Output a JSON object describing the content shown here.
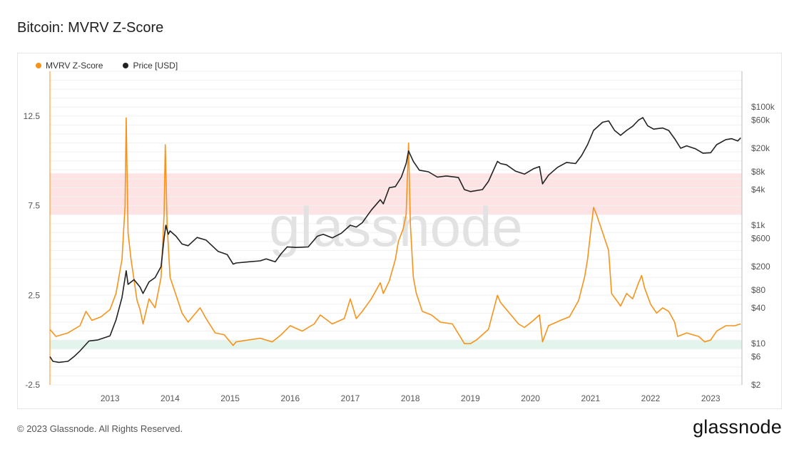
{
  "title": "Bitcoin: MVRV Z-Score",
  "legend": [
    {
      "label": "MVRV Z-Score",
      "color": "#f7931a"
    },
    {
      "label": "Price [USD]",
      "color": "#222222"
    }
  ],
  "watermark": "glassnode",
  "footer": {
    "copyright": "© 2023 Glassnode. All Rights Reserved.",
    "logo_text": "glassnode"
  },
  "chart_data": {
    "type": "line",
    "x_ticks": [
      "2013",
      "2014",
      "2015",
      "2016",
      "2017",
      "2018",
      "2019",
      "2020",
      "2021",
      "2022",
      "2023"
    ],
    "x_range": [
      2012.0,
      2023.52
    ],
    "y_left": {
      "range": [
        -2.5,
        15
      ],
      "ticks": [
        "12.5",
        "7.5",
        "2.5",
        "-2.5"
      ],
      "tick_values": [
        12.5,
        7.5,
        2.5,
        -2.5
      ]
    },
    "y_right": {
      "scale": "log",
      "range": [
        2,
        400000
      ],
      "ticks": [
        "$100k",
        "$60k",
        "$20k",
        "$8k",
        "$4k",
        "$1k",
        "$600",
        "$200",
        "$80",
        "$40",
        "$10",
        "$6",
        "$2"
      ],
      "tick_values": [
        100000,
        60000,
        20000,
        8000,
        4000,
        1000,
        600,
        200,
        80,
        40,
        10,
        6,
        2
      ]
    },
    "bands": [
      {
        "name": "overvalued",
        "y_from": 7.0,
        "y_to": 9.3,
        "color": "#fde3e3"
      },
      {
        "name": "undervalued",
        "y_from": -0.5,
        "y_to": 0.0,
        "color": "#e3f4ec"
      }
    ],
    "series": [
      {
        "name": "MVRV Z-Score",
        "axis": "left",
        "color": "#f7931a",
        "points": [
          [
            2012.0,
            0.6
          ],
          [
            2012.1,
            0.2
          ],
          [
            2012.3,
            0.4
          ],
          [
            2012.5,
            0.8
          ],
          [
            2012.6,
            1.6
          ],
          [
            2012.7,
            1.1
          ],
          [
            2012.85,
            1.3
          ],
          [
            2013.0,
            1.7
          ],
          [
            2013.1,
            2.6
          ],
          [
            2013.2,
            4.5
          ],
          [
            2013.25,
            7.5
          ],
          [
            2013.27,
            12.4
          ],
          [
            2013.3,
            6.0
          ],
          [
            2013.35,
            4.5
          ],
          [
            2013.45,
            2.2
          ],
          [
            2013.5,
            1.7
          ],
          [
            2013.55,
            0.9
          ],
          [
            2013.65,
            2.3
          ],
          [
            2013.75,
            1.8
          ],
          [
            2013.85,
            3.5
          ],
          [
            2013.9,
            7.0
          ],
          [
            2013.92,
            10.9
          ],
          [
            2013.95,
            6.5
          ],
          [
            2014.0,
            3.5
          ],
          [
            2014.1,
            2.5
          ],
          [
            2014.2,
            1.5
          ],
          [
            2014.3,
            1.0
          ],
          [
            2014.4,
            1.4
          ],
          [
            2014.5,
            1.8
          ],
          [
            2014.6,
            1.2
          ],
          [
            2014.75,
            0.4
          ],
          [
            2014.9,
            0.3
          ],
          [
            2015.05,
            -0.3
          ],
          [
            2015.1,
            -0.1
          ],
          [
            2015.3,
            0.0
          ],
          [
            2015.5,
            0.1
          ],
          [
            2015.7,
            -0.1
          ],
          [
            2015.85,
            0.3
          ],
          [
            2016.0,
            0.8
          ],
          [
            2016.2,
            0.5
          ],
          [
            2016.4,
            0.9
          ],
          [
            2016.5,
            1.4
          ],
          [
            2016.7,
            0.9
          ],
          [
            2016.9,
            1.2
          ],
          [
            2017.0,
            2.3
          ],
          [
            2017.1,
            1.2
          ],
          [
            2017.2,
            1.6
          ],
          [
            2017.35,
            2.3
          ],
          [
            2017.5,
            3.2
          ],
          [
            2017.55,
            2.6
          ],
          [
            2017.65,
            3.3
          ],
          [
            2017.75,
            4.5
          ],
          [
            2017.8,
            5.5
          ],
          [
            2017.88,
            6.2
          ],
          [
            2017.93,
            7.0
          ],
          [
            2017.97,
            11.0
          ],
          [
            2018.0,
            6.5
          ],
          [
            2018.05,
            3.5
          ],
          [
            2018.1,
            2.6
          ],
          [
            2018.2,
            1.6
          ],
          [
            2018.35,
            1.4
          ],
          [
            2018.5,
            1.0
          ],
          [
            2018.7,
            0.9
          ],
          [
            2018.9,
            -0.2
          ],
          [
            2019.0,
            -0.2
          ],
          [
            2019.1,
            0.0
          ],
          [
            2019.3,
            0.6
          ],
          [
            2019.45,
            2.5
          ],
          [
            2019.5,
            2.1
          ],
          [
            2019.6,
            1.7
          ],
          [
            2019.8,
            0.9
          ],
          [
            2019.9,
            0.7
          ],
          [
            2020.05,
            1.1
          ],
          [
            2020.15,
            1.4
          ],
          [
            2020.2,
            -0.1
          ],
          [
            2020.3,
            0.8
          ],
          [
            2020.5,
            1.1
          ],
          [
            2020.65,
            1.3
          ],
          [
            2020.8,
            2.2
          ],
          [
            2020.9,
            3.5
          ],
          [
            2020.95,
            4.5
          ],
          [
            2021.0,
            6.0
          ],
          [
            2021.05,
            7.4
          ],
          [
            2021.1,
            7.0
          ],
          [
            2021.2,
            6.0
          ],
          [
            2021.3,
            5.0
          ],
          [
            2021.35,
            2.6
          ],
          [
            2021.5,
            1.9
          ],
          [
            2021.6,
            2.6
          ],
          [
            2021.7,
            2.3
          ],
          [
            2021.8,
            3.2
          ],
          [
            2021.85,
            3.6
          ],
          [
            2021.9,
            2.9
          ],
          [
            2022.0,
            2.0
          ],
          [
            2022.1,
            1.5
          ],
          [
            2022.2,
            1.8
          ],
          [
            2022.3,
            1.6
          ],
          [
            2022.4,
            1.0
          ],
          [
            2022.45,
            0.2
          ],
          [
            2022.6,
            0.4
          ],
          [
            2022.8,
            0.2
          ],
          [
            2022.9,
            -0.1
          ],
          [
            2023.0,
            0.0
          ],
          [
            2023.1,
            0.5
          ],
          [
            2023.25,
            0.8
          ],
          [
            2023.4,
            0.8
          ],
          [
            2023.5,
            0.9
          ]
        ]
      },
      {
        "name": "Price [USD]",
        "axis": "right",
        "color": "#222222",
        "points": [
          [
            2012.0,
            6
          ],
          [
            2012.05,
            5
          ],
          [
            2012.15,
            4.8
          ],
          [
            2012.3,
            5
          ],
          [
            2012.4,
            6
          ],
          [
            2012.5,
            7.5
          ],
          [
            2012.65,
            11
          ],
          [
            2012.8,
            11.5
          ],
          [
            2013.0,
            13.5
          ],
          [
            2013.1,
            25
          ],
          [
            2013.2,
            60
          ],
          [
            2013.27,
            170
          ],
          [
            2013.3,
            100
          ],
          [
            2013.4,
            120
          ],
          [
            2013.5,
            90
          ],
          [
            2013.55,
            70
          ],
          [
            2013.65,
            110
          ],
          [
            2013.75,
            130
          ],
          [
            2013.85,
            200
          ],
          [
            2013.9,
            600
          ],
          [
            2013.93,
            1000
          ],
          [
            2013.97,
            700
          ],
          [
            2014.0,
            800
          ],
          [
            2014.1,
            650
          ],
          [
            2014.2,
            480
          ],
          [
            2014.3,
            450
          ],
          [
            2014.45,
            620
          ],
          [
            2014.6,
            560
          ],
          [
            2014.7,
            450
          ],
          [
            2014.8,
            360
          ],
          [
            2014.95,
            320
          ],
          [
            2015.05,
            220
          ],
          [
            2015.1,
            230
          ],
          [
            2015.3,
            240
          ],
          [
            2015.5,
            250
          ],
          [
            2015.6,
            270
          ],
          [
            2015.75,
            240
          ],
          [
            2015.85,
            330
          ],
          [
            2015.95,
            430
          ],
          [
            2016.1,
            420
          ],
          [
            2016.3,
            430
          ],
          [
            2016.45,
            650
          ],
          [
            2016.55,
            700
          ],
          [
            2016.7,
            610
          ],
          [
            2016.85,
            730
          ],
          [
            2017.0,
            1000
          ],
          [
            2017.1,
            930
          ],
          [
            2017.2,
            1100
          ],
          [
            2017.35,
            1800
          ],
          [
            2017.5,
            2700
          ],
          [
            2017.55,
            2300
          ],
          [
            2017.65,
            4300
          ],
          [
            2017.75,
            4500
          ],
          [
            2017.85,
            6500
          ],
          [
            2017.93,
            11000
          ],
          [
            2017.97,
            18000
          ],
          [
            2018.05,
            12000
          ],
          [
            2018.15,
            8500
          ],
          [
            2018.3,
            8000
          ],
          [
            2018.45,
            6500
          ],
          [
            2018.6,
            6800
          ],
          [
            2018.8,
            6400
          ],
          [
            2018.9,
            4000
          ],
          [
            2019.0,
            3700
          ],
          [
            2019.2,
            4000
          ],
          [
            2019.3,
            5500
          ],
          [
            2019.45,
            12000
          ],
          [
            2019.5,
            11000
          ],
          [
            2019.6,
            10500
          ],
          [
            2019.75,
            8200
          ],
          [
            2019.9,
            7300
          ],
          [
            2020.05,
            9000
          ],
          [
            2020.15,
            9800
          ],
          [
            2020.2,
            5000
          ],
          [
            2020.3,
            7000
          ],
          [
            2020.45,
            9500
          ],
          [
            2020.6,
            11500
          ],
          [
            2020.75,
            11000
          ],
          [
            2020.85,
            15000
          ],
          [
            2020.95,
            23000
          ],
          [
            2021.05,
            40000
          ],
          [
            2021.2,
            55000
          ],
          [
            2021.3,
            58000
          ],
          [
            2021.4,
            40000
          ],
          [
            2021.5,
            33000
          ],
          [
            2021.6,
            40000
          ],
          [
            2021.7,
            47000
          ],
          [
            2021.8,
            60000
          ],
          [
            2021.87,
            66000
          ],
          [
            2021.95,
            48000
          ],
          [
            2022.05,
            42000
          ],
          [
            2022.2,
            44000
          ],
          [
            2022.3,
            40000
          ],
          [
            2022.4,
            29000
          ],
          [
            2022.5,
            20000
          ],
          [
            2022.6,
            22000
          ],
          [
            2022.75,
            19500
          ],
          [
            2022.87,
            16500
          ],
          [
            2023.0,
            16800
          ],
          [
            2023.1,
            23000
          ],
          [
            2023.25,
            28000
          ],
          [
            2023.35,
            29000
          ],
          [
            2023.45,
            26500
          ],
          [
            2023.5,
            30000
          ]
        ]
      }
    ]
  }
}
